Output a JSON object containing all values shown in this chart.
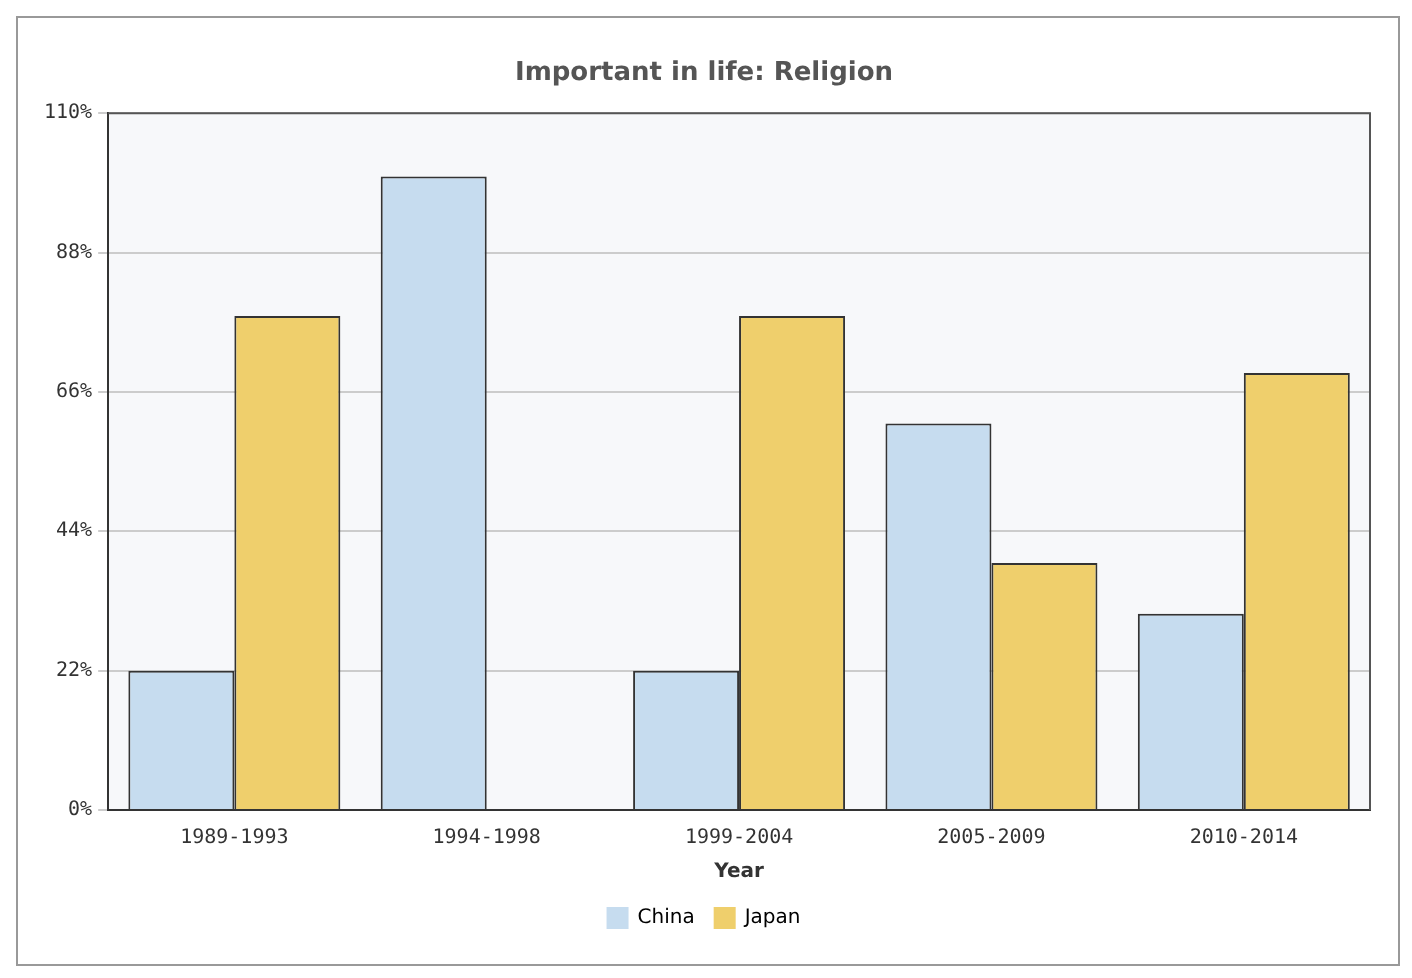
{
  "chart_data": {
    "type": "bar",
    "title": "Important in life: Religion",
    "xlabel": "Year",
    "categories": [
      "1989-1993",
      "1994-1998",
      "1999-2004",
      "2005-2009",
      "2010-2014"
    ],
    "series": [
      {
        "name": "China",
        "color": "#c6dcef",
        "values": [
          22,
          100,
          22,
          61,
          31
        ]
      },
      {
        "name": "Japan",
        "color": "#efcf6c",
        "values": [
          78,
          null,
          78,
          39,
          69
        ]
      }
    ],
    "ylim": [
      0,
      110
    ],
    "yticks": [
      {
        "value": 0,
        "label": "0%"
      },
      {
        "value": 22,
        "label": "22%"
      },
      {
        "value": 44,
        "label": "44%"
      },
      {
        "value": 66,
        "label": "66%"
      },
      {
        "value": 88,
        "label": "88%"
      },
      {
        "value": 110,
        "label": "110%"
      }
    ],
    "grid": "y",
    "legend": "bottom"
  }
}
